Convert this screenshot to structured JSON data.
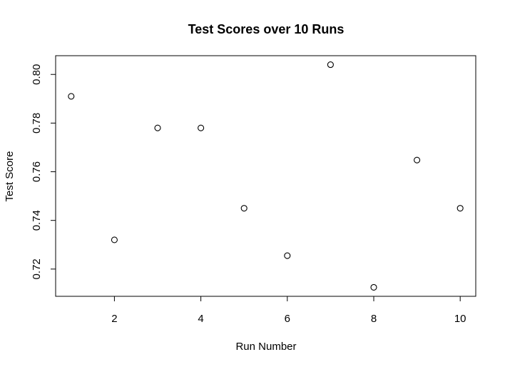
{
  "chart_data": {
    "type": "scatter",
    "title": "Test Scores over 10 Runs",
    "xlabel": "Run Number",
    "ylabel": "Test Score",
    "x": [
      1,
      2,
      3,
      4,
      5,
      6,
      7,
      8,
      9,
      10
    ],
    "y": [
      0.791,
      0.732,
      0.778,
      0.778,
      0.745,
      0.7255,
      0.804,
      0.7125,
      0.7648,
      0.745
    ],
    "xlim": [
      0.64,
      10.36
    ],
    "ylim": [
      0.7088,
      0.8077
    ],
    "x_ticks": [
      2,
      4,
      6,
      8,
      10
    ],
    "y_ticks": [
      0.72,
      0.74,
      0.76,
      0.78,
      0.8
    ],
    "x_tick_labels": [
      "2",
      "4",
      "6",
      "8",
      "10"
    ],
    "y_tick_labels": [
      "0.72",
      "0.74",
      "0.76",
      "0.78",
      "0.80"
    ],
    "grid": false,
    "marker": "open-circle",
    "marker_color": "#000000"
  }
}
